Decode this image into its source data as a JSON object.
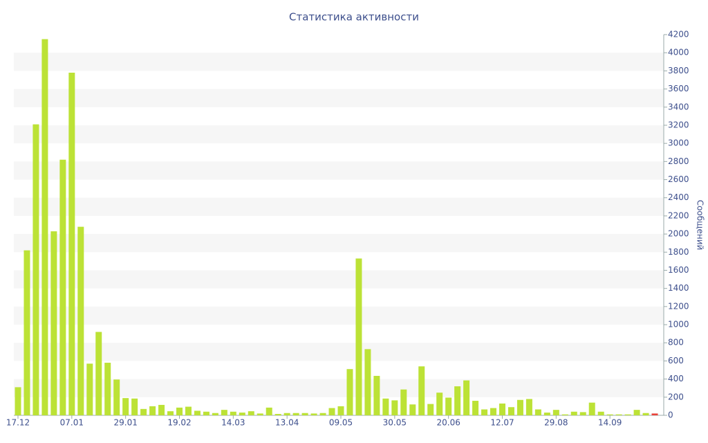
{
  "chart_data": {
    "type": "bar",
    "title": "Статистика активности",
    "y_label": "Сообщений",
    "categories": [
      "17.12",
      null,
      null,
      null,
      null,
      null,
      "07.01",
      null,
      null,
      null,
      null,
      null,
      "29.01",
      null,
      null,
      null,
      null,
      null,
      "19.02",
      null,
      null,
      null,
      null,
      null,
      "14.03",
      null,
      null,
      null,
      null,
      null,
      "13.04",
      null,
      null,
      null,
      null,
      null,
      "09.05",
      null,
      null,
      null,
      null,
      null,
      "30.05",
      null,
      null,
      null,
      null,
      null,
      "20.06",
      null,
      null,
      null,
      null,
      null,
      "12.07",
      null,
      null,
      null,
      null,
      null,
      "29.08",
      null,
      null,
      null,
      null,
      null,
      "14.09",
      null,
      null,
      null,
      null,
      null
    ],
    "values": [
      310,
      1820,
      3210,
      4150,
      2030,
      2820,
      3780,
      2080,
      570,
      920,
      580,
      395,
      190,
      185,
      70,
      100,
      115,
      45,
      85,
      95,
      50,
      40,
      25,
      60,
      40,
      30,
      45,
      20,
      85,
      15,
      25,
      25,
      25,
      20,
      25,
      80,
      100,
      510,
      1730,
      730,
      435,
      185,
      165,
      285,
      120,
      540,
      125,
      250,
      195,
      320,
      385,
      160,
      65,
      80,
      130,
      90,
      170,
      180,
      65,
      30,
      60,
      10,
      40,
      35,
      140,
      40,
      10,
      10,
      10,
      60,
      25,
      20
    ],
    "color": "#bce236",
    "last_color": "#e8423a",
    "ylim": [
      0,
      4200
    ],
    "yticks": [
      0,
      200,
      400,
      600,
      800,
      1000,
      1200,
      1400,
      1600,
      1800,
      2000,
      2200,
      2400,
      2600,
      2800,
      3000,
      3200,
      3400,
      3600,
      3800,
      4000,
      4200
    ],
    "y_axis_side": "right",
    "grid": "bands"
  }
}
